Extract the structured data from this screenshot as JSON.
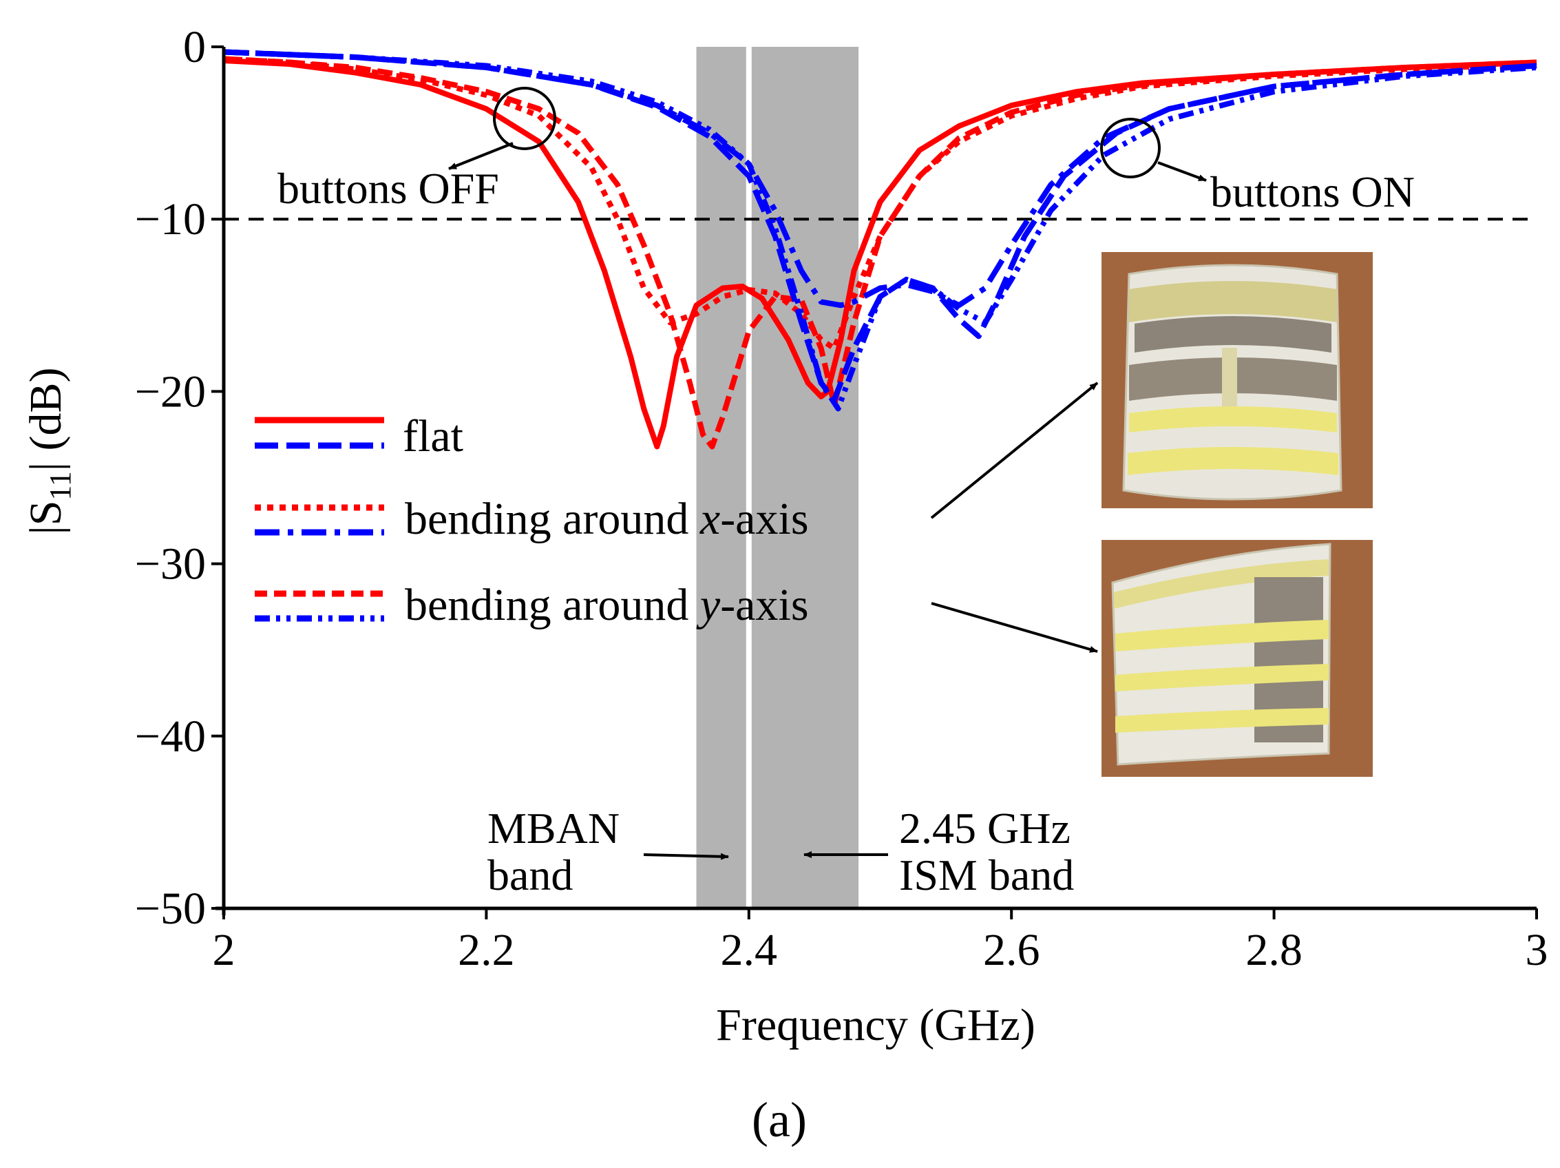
{
  "chart_data": {
    "type": "line",
    "caption": "(a)",
    "xlabel": "Frequency (GHz)",
    "ylabel_main": "|S",
    "ylabel_sub": "11",
    "ylabel_tail": "| (dB)",
    "xlim": [
      2,
      3
    ],
    "ylim": [
      -50,
      0
    ],
    "xticks": [
      2,
      2.2,
      2.4,
      2.6,
      2.8,
      3
    ],
    "xtick_labels": [
      "2",
      "2.2",
      "2.4",
      "2.6",
      "2.8",
      "3"
    ],
    "yticks": [
      0,
      -10,
      -20,
      -30,
      -40,
      -50
    ],
    "ytick_labels": [
      "0",
      "−10",
      "−20",
      "−30",
      "−40",
      "−50"
    ],
    "reference_line": {
      "y": -10,
      "style": "dashed",
      "color": "#000000"
    },
    "bands": [
      {
        "name": "MBAN band",
        "x0": 2.36,
        "x1": 2.4,
        "color": "#b3b3b3"
      },
      {
        "name": "2.45 GHz ISM band",
        "x0": 2.4,
        "x1": 2.4835,
        "color": "#b3b3b3"
      }
    ],
    "legend": {
      "placement": "center-left",
      "entries": [
        {
          "label": "flat",
          "label_rich": false
        },
        {
          "label_pre": "bending around ",
          "label_italic": "x",
          "label_post": "-axis"
        },
        {
          "label_pre": "bending around ",
          "label_italic": "y",
          "label_post": "-axis"
        }
      ]
    },
    "series": [
      {
        "name": "flat (buttons OFF)",
        "state": "OFF",
        "color": "#ff0000",
        "dash": "solid",
        "x": [
          2.0,
          2.05,
          2.1,
          2.15,
          2.2,
          2.24,
          2.27,
          2.29,
          2.31,
          2.32,
          2.33,
          2.335,
          2.345,
          2.36,
          2.38,
          2.395,
          2.41,
          2.43,
          2.445,
          2.455,
          2.46,
          2.47,
          2.48,
          2.5,
          2.53,
          2.56,
          2.6,
          2.65,
          2.7,
          2.8,
          2.9,
          3.0
        ],
        "y": [
          -0.8,
          -1.0,
          -1.5,
          -2.2,
          -3.6,
          -5.5,
          -9.0,
          -13.0,
          -18.0,
          -21.0,
          -23.2,
          -22.0,
          -18.0,
          -15.0,
          -14.0,
          -13.9,
          -14.6,
          -17.0,
          -19.5,
          -20.3,
          -20.0,
          -17.0,
          -13.0,
          -9.0,
          -6.0,
          -4.6,
          -3.4,
          -2.6,
          -2.1,
          -1.6,
          -1.2,
          -0.9
        ]
      },
      {
        "name": "bending around x-axis (buttons OFF)",
        "state": "OFF",
        "color": "#ff0000",
        "dash": "dotted",
        "x": [
          2.0,
          2.05,
          2.1,
          2.15,
          2.2,
          2.24,
          2.28,
          2.3,
          2.32,
          2.34,
          2.36,
          2.38,
          2.4,
          2.42,
          2.44,
          2.455,
          2.465,
          2.48,
          2.5,
          2.53,
          2.56,
          2.6,
          2.65,
          2.7,
          2.8,
          2.9,
          3.0
        ],
        "y": [
          -0.7,
          -0.9,
          -1.3,
          -1.9,
          -2.8,
          -4.0,
          -7.0,
          -10.0,
          -14.0,
          -16.0,
          -15.5,
          -14.5,
          -14.1,
          -14.3,
          -15.5,
          -17.0,
          -17.5,
          -14.5,
          -11.0,
          -7.5,
          -5.5,
          -4.0,
          -3.0,
          -2.3,
          -1.7,
          -1.3,
          -1.0
        ]
      },
      {
        "name": "bending around y-axis (buttons OFF)",
        "state": "OFF",
        "color": "#ff0000",
        "dash": "dashed",
        "x": [
          2.0,
          2.05,
          2.1,
          2.15,
          2.2,
          2.24,
          2.27,
          2.3,
          2.32,
          2.34,
          2.355,
          2.365,
          2.372,
          2.38,
          2.4,
          2.42,
          2.44,
          2.455,
          2.465,
          2.48,
          2.5,
          2.53,
          2.56,
          2.6,
          2.65,
          2.7,
          2.8,
          2.9,
          3.0
        ],
        "y": [
          -0.7,
          -0.9,
          -1.2,
          -1.8,
          -2.6,
          -3.6,
          -5.0,
          -8.0,
          -11.5,
          -15.5,
          -19.5,
          -22.5,
          -23.2,
          -21.5,
          -16.5,
          -14.5,
          -14.7,
          -17.5,
          -20.8,
          -16.0,
          -11.0,
          -7.5,
          -5.3,
          -3.8,
          -2.8,
          -2.2,
          -1.6,
          -1.2,
          -0.9
        ]
      },
      {
        "name": "flat (buttons ON)",
        "state": "ON",
        "color": "#0000ff",
        "dash": "dashed",
        "x": [
          2.0,
          2.1,
          2.2,
          2.28,
          2.33,
          2.37,
          2.4,
          2.42,
          2.44,
          2.455,
          2.465,
          2.48,
          2.5,
          2.52,
          2.54,
          2.56,
          2.575,
          2.59,
          2.61,
          2.64,
          2.68,
          2.72,
          2.8,
          2.9,
          3.0
        ],
        "y": [
          -0.3,
          -0.6,
          -1.2,
          -2.2,
          -3.5,
          -5.2,
          -7.5,
          -11.0,
          -16.0,
          -19.5,
          -20.5,
          -17.5,
          -14.5,
          -13.5,
          -14.0,
          -15.8,
          -16.8,
          -14.5,
          -11.0,
          -7.5,
          -5.0,
          -3.6,
          -2.3,
          -1.6,
          -1.1
        ]
      },
      {
        "name": "bending around x-axis (buttons ON)",
        "state": "ON",
        "color": "#0000ff",
        "dash": "dashdot",
        "x": [
          2.0,
          2.1,
          2.2,
          2.28,
          2.33,
          2.37,
          2.4,
          2.42,
          2.44,
          2.455,
          2.47,
          2.48,
          2.5,
          2.52,
          2.54,
          2.56,
          2.58,
          2.6,
          2.63,
          2.67,
          2.72,
          2.8,
          2.9,
          3.0
        ],
        "y": [
          -0.3,
          -0.6,
          -1.2,
          -2.2,
          -3.4,
          -5.0,
          -6.8,
          -9.5,
          -13.0,
          -14.8,
          -15.0,
          -14.8,
          -14.0,
          -13.8,
          -14.2,
          -15.0,
          -14.0,
          -11.5,
          -8.0,
          -5.3,
          -3.6,
          -2.3,
          -1.6,
          -1.1
        ]
      },
      {
        "name": "bending around y-axis (buttons ON)",
        "state": "ON",
        "color": "#0000ff",
        "dash": "dashdotdot",
        "x": [
          2.0,
          2.1,
          2.2,
          2.28,
          2.33,
          2.37,
          2.4,
          2.42,
          2.44,
          2.455,
          2.468,
          2.48,
          2.5,
          2.52,
          2.54,
          2.56,
          2.58,
          2.6,
          2.63,
          2.67,
          2.72,
          2.8,
          2.9,
          3.0
        ],
        "y": [
          -0.3,
          -0.6,
          -1.1,
          -2.0,
          -3.2,
          -4.8,
          -6.8,
          -10.5,
          -15.5,
          -19.5,
          -21.0,
          -18.5,
          -14.5,
          -13.5,
          -14.0,
          -15.2,
          -16.0,
          -13.5,
          -9.5,
          -6.3,
          -4.2,
          -2.6,
          -1.7,
          -1.2
        ]
      }
    ],
    "annotations": {
      "buttons_off": "buttons OFF",
      "buttons_on": "buttons ON",
      "mban_line1": "MBAN",
      "mban_line2": "band",
      "ism_line1": "2.45 GHz",
      "ism_line2": "ISM band"
    },
    "photos": [
      {
        "name": "photo of antenna bent around x-axis"
      },
      {
        "name": "photo of antenna bent around y-axis"
      }
    ]
  },
  "colors": {
    "off_state": "#ff0000",
    "on_state": "#0000ff",
    "band_fill": "#b3b3b3",
    "photo_background": "#a2663e"
  }
}
